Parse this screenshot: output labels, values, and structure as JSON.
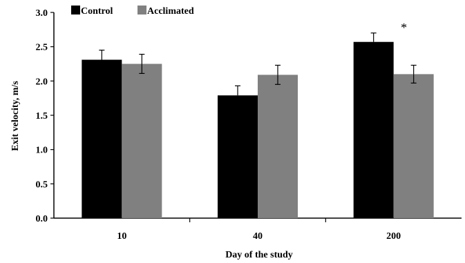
{
  "chart_data": {
    "type": "bar",
    "categories": [
      "10",
      "40",
      "200"
    ],
    "series": [
      {
        "name": "Control",
        "values": [
          2.31,
          1.79,
          2.57
        ],
        "errors": [
          0.14,
          0.14,
          0.13
        ],
        "color": "#000000"
      },
      {
        "name": "Acclimated",
        "values": [
          2.25,
          2.09,
          2.1
        ],
        "errors": [
          0.14,
          0.14,
          0.13
        ],
        "color": "#808080"
      }
    ],
    "xlabel": "Day of the study",
    "ylabel": "Exit velocity, m/s",
    "ylim": [
      0.0,
      3.0
    ],
    "yticks": [
      "0.0",
      "0.5",
      "1.0",
      "1.5",
      "2.0",
      "2.5",
      "3.0"
    ],
    "grid": false,
    "legend_position": "top-left",
    "annotations": [
      {
        "text": "*",
        "category": "200",
        "series": "Acclimated"
      }
    ]
  }
}
